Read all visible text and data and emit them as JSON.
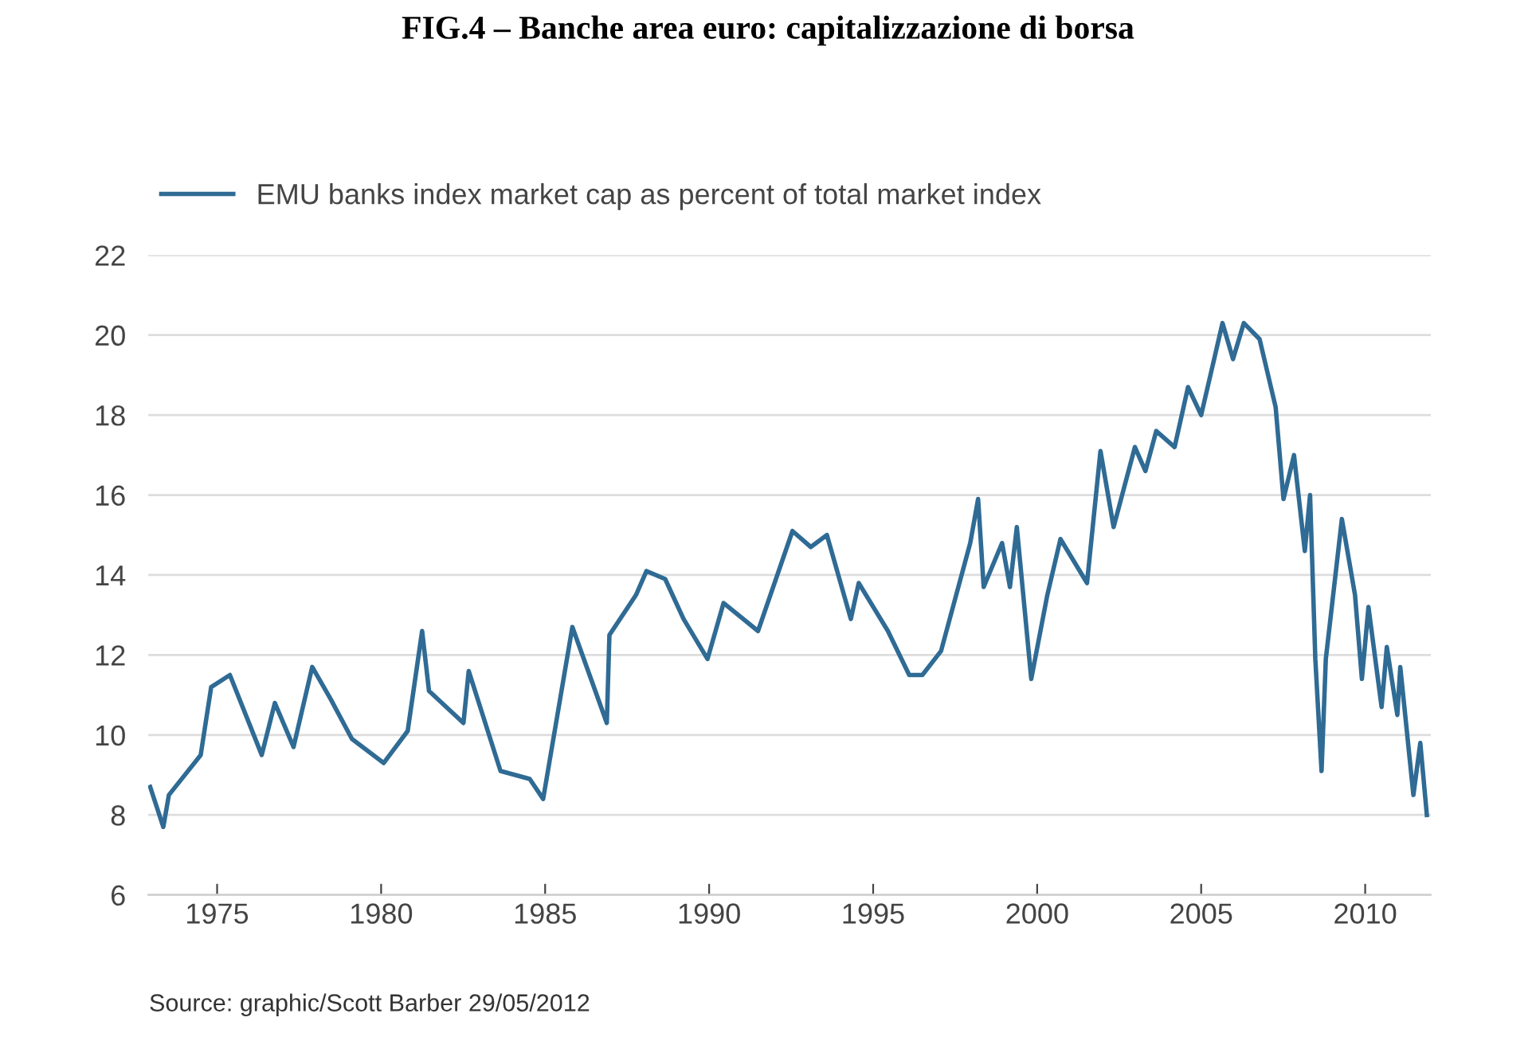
{
  "chart_data": {
    "type": "line",
    "title": "FIG.4 – Banche area euro: capitalizzazione di borsa",
    "annotations": [
      "Source: graphic/Scott Barber 29/05/2012"
    ],
    "series": [
      {
        "name": "EMU banks index market cap as percent of total market index",
        "color": "#2f6b94",
        "x": [
          1972.96,
          1973.36,
          1973.53,
          1974.5,
          1974.82,
          1975.39,
          1976.36,
          1976.76,
          1977.33,
          1977.9,
          1978.46,
          1979.11,
          1980.08,
          1980.81,
          1981.25,
          1981.46,
          1982.51,
          1982.67,
          1983.64,
          1984.53,
          1984.94,
          1985.83,
          1986.88,
          1986.96,
          1987.77,
          1988.09,
          1988.66,
          1989.22,
          1989.95,
          1990.44,
          1991.49,
          1992.54,
          1993.1,
          1993.59,
          1994.32,
          1994.56,
          1995.45,
          1996.1,
          1996.5,
          1997.07,
          1997.96,
          1998.2,
          1998.37,
          1998.93,
          1999.17,
          1999.38,
          1999.82,
          2000.31,
          2000.71,
          2001.52,
          2001.93,
          2002.33,
          2002.98,
          2003.3,
          2003.63,
          2004.19,
          2004.6,
          2005.0,
          2005.65,
          2005.97,
          2006.3,
          2006.78,
          2007.27,
          2007.51,
          2007.83,
          2008.16,
          2008.32,
          2008.48,
          2008.67,
          2008.8,
          2009.29,
          2009.69,
          2009.9,
          2010.1,
          2010.5,
          2010.66,
          2010.98,
          2011.07,
          2011.47,
          2011.68,
          2011.88
        ],
        "values": [
          8.7,
          7.7,
          8.5,
          9.5,
          11.2,
          11.5,
          9.5,
          10.8,
          9.7,
          11.7,
          10.9,
          9.9,
          9.3,
          10.1,
          12.6,
          11.1,
          10.3,
          11.6,
          9.1,
          8.9,
          8.4,
          12.7,
          10.3,
          12.5,
          13.5,
          14.1,
          13.9,
          12.9,
          11.9,
          13.3,
          12.6,
          15.1,
          14.7,
          15.0,
          12.9,
          13.8,
          12.6,
          11.5,
          11.5,
          12.1,
          14.8,
          15.9,
          13.7,
          14.8,
          13.7,
          15.2,
          11.4,
          13.5,
          14.9,
          13.8,
          17.1,
          15.2,
          17.2,
          16.6,
          17.6,
          17.2,
          18.7,
          18.0,
          20.3,
          19.4,
          20.3,
          19.9,
          18.2,
          15.9,
          17.0,
          14.6,
          16.0,
          11.9,
          9.1,
          11.9,
          15.4,
          13.5,
          11.4,
          13.2,
          10.7,
          12.2,
          10.5,
          11.7,
          8.5,
          9.8,
          8.0
        ]
      }
    ],
    "xlim": [
      1972.9,
      2012.0
    ],
    "ylim": [
      6,
      22
    ],
    "xticks": [
      1975,
      1980,
      1985,
      1990,
      1995,
      2000,
      2005,
      2010
    ],
    "yticks": [
      6,
      8,
      10,
      12,
      14,
      16,
      18,
      20,
      22
    ],
    "grid": "y",
    "legend": "top left",
    "marker": "none",
    "line_style": "solid"
  }
}
